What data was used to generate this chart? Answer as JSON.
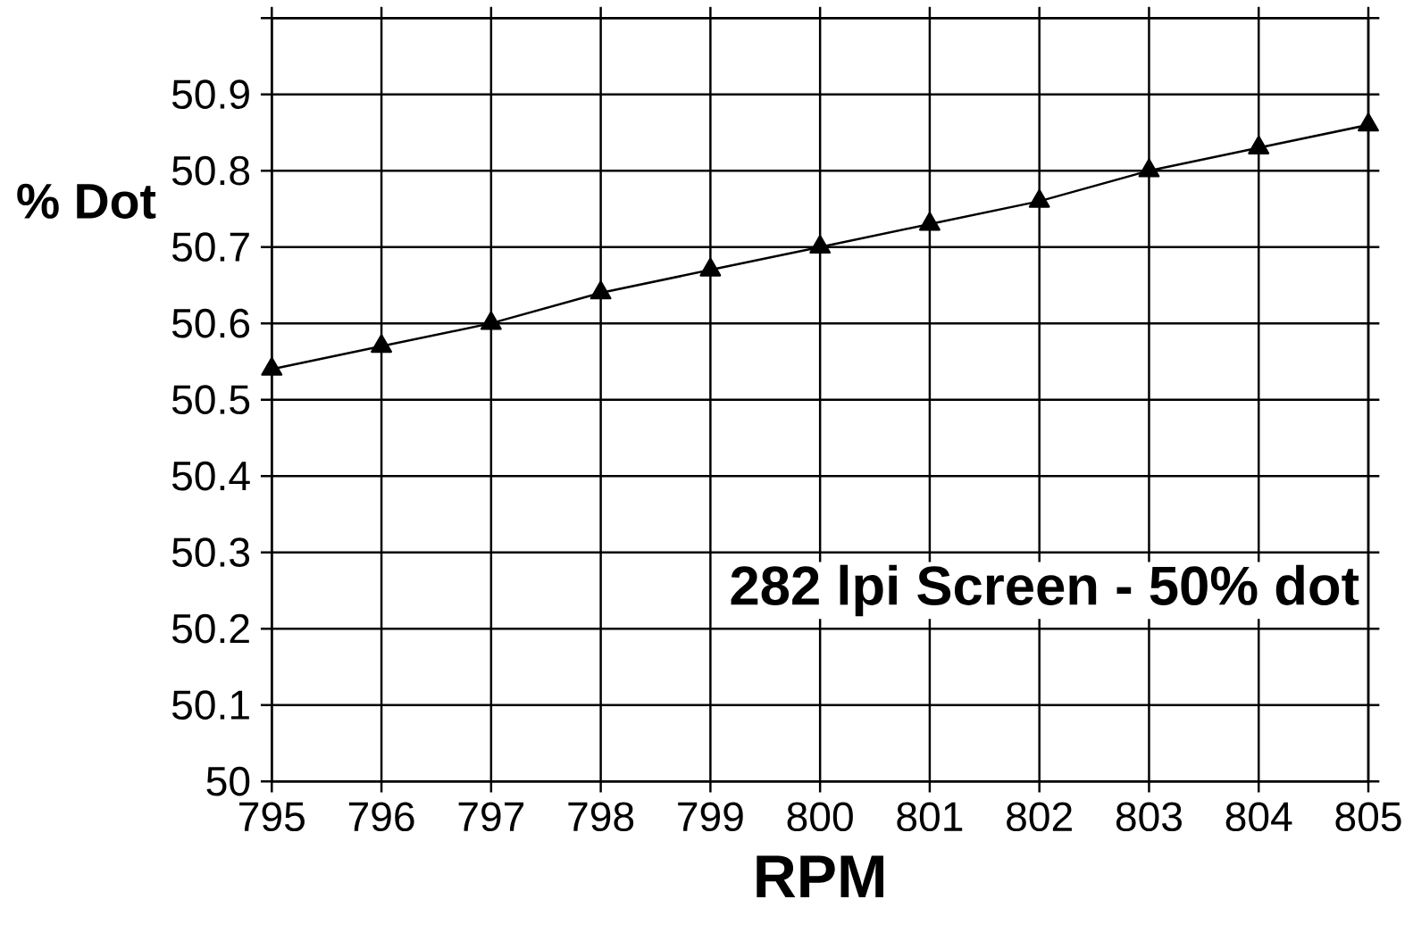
{
  "chart_data": {
    "type": "line",
    "xlabel": "RPM",
    "ylabel": "% Dot",
    "annotations": [
      "282 lpi Screen - 50% dot"
    ],
    "x": [
      795,
      796,
      797,
      798,
      799,
      800,
      801,
      802,
      803,
      804,
      805
    ],
    "series": [
      {
        "color": "#000000",
        "values": [
          50.54,
          50.57,
          50.6,
          50.64,
          50.67,
          50.7,
          50.73,
          50.76,
          50.8,
          50.83,
          50.86
        ]
      }
    ],
    "xlim": [
      795,
      805
    ],
    "xticks": [
      795,
      796,
      797,
      798,
      799,
      800,
      801,
      802,
      803,
      804,
      805
    ],
    "ylim": [
      50,
      51
    ],
    "yticks": [
      50,
      50.1,
      50.2,
      50.3,
      50.4,
      50.5,
      50.6,
      50.7,
      50.8,
      50.9,
      {
        "value": 51,
        "label": null
      }
    ],
    "grid": true,
    "marker": "triangle",
    "line_style": "solid"
  }
}
